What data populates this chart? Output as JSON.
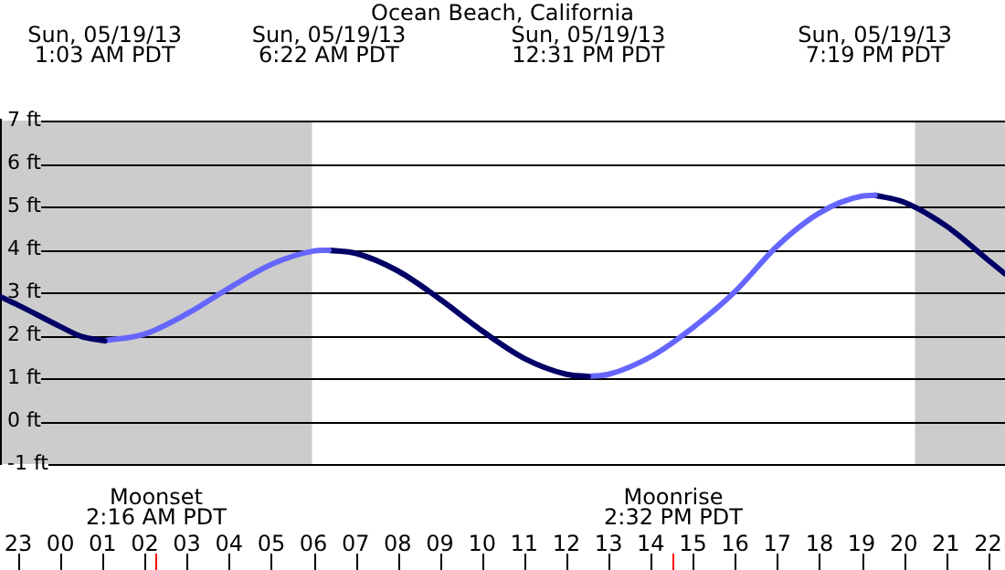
{
  "chart_data": {
    "type": "line",
    "title": "Ocean Beach, California",
    "xlim": [
      "--05-18T22:34",
      "--05-19T22:24"
    ],
    "xticks": [
      {
        "value": "--05-18T23:00",
        "label": "23"
      },
      {
        "value": "--05-19T00:00",
        "label": "00"
      },
      {
        "value": "--05-19T01:00",
        "label": "01"
      },
      {
        "value": "--05-19T02:00",
        "label": "02"
      },
      {
        "value": "--05-19T03:00",
        "label": "03"
      },
      {
        "value": "--05-19T04:00",
        "label": "04"
      },
      {
        "value": "--05-19T05:00",
        "label": "05"
      },
      {
        "value": "--05-19T06:00",
        "label": "06"
      },
      {
        "value": "--05-19T07:00",
        "label": "07"
      },
      {
        "value": "--05-19T08:00",
        "label": "08"
      },
      {
        "value": "--05-19T09:00",
        "label": "09"
      },
      {
        "value": "--05-19T10:00",
        "label": "10"
      },
      {
        "value": "--05-19T11:00",
        "label": "11"
      },
      {
        "value": "--05-19T12:00",
        "label": "12"
      },
      {
        "value": "--05-19T13:00",
        "label": "13"
      },
      {
        "value": "--05-19T14:00",
        "label": "14"
      },
      {
        "value": "--05-19T15:00",
        "label": "15"
      },
      {
        "value": "--05-19T16:00",
        "label": "16"
      },
      {
        "value": "--05-19T17:00",
        "label": "17"
      },
      {
        "value": "--05-19T18:00",
        "label": "18"
      },
      {
        "value": "--05-19T19:00",
        "label": "19"
      },
      {
        "value": "--05-19T20:00",
        "label": "20"
      },
      {
        "value": "--05-19T21:00",
        "label": "21"
      },
      {
        "value": "--05-19T22:00",
        "label": "22"
      }
    ],
    "ylim": [
      -1,
      7
    ],
    "yticks": [
      {
        "value": -1,
        "label": "-1 ft"
      },
      {
        "value": 0,
        "label": "0 ft"
      },
      {
        "value": 1,
        "label": "1 ft"
      },
      {
        "value": 2,
        "label": "2 ft"
      },
      {
        "value": 3,
        "label": "3 ft"
      },
      {
        "value": 4,
        "label": "4 ft"
      },
      {
        "value": 5,
        "label": "5 ft"
      },
      {
        "value": 6,
        "label": "6 ft"
      },
      {
        "value": 7,
        "label": "7 ft"
      }
    ],
    "series": [
      {
        "color": "#000066",
        "x": [
          "--05-18T22:34",
          "--05-18T23:00",
          "--05-19T00:00",
          "--05-19T00:30",
          "--05-19T01:03"
        ],
        "values": [
          2.9,
          2.7,
          2.2,
          1.97,
          1.87
        ]
      },
      {
        "color": "#6666ff",
        "x": [
          "--05-19T01:03",
          "--05-19T02:00",
          "--05-19T03:00",
          "--05-19T04:00",
          "--05-19T05:00",
          "--05-19T06:00",
          "--05-19T06:22"
        ],
        "values": [
          1.87,
          2.03,
          2.5,
          3.1,
          3.65,
          3.96,
          3.98
        ]
      },
      {
        "color": "#000066",
        "x": [
          "--05-19T06:22",
          "--05-19T07:00",
          "--05-19T08:00",
          "--05-19T09:00",
          "--05-19T10:00",
          "--05-19T11:00",
          "--05-19T12:00",
          "--05-19T12:31"
        ],
        "values": [
          3.98,
          3.91,
          3.5,
          2.84,
          2.1,
          1.46,
          1.09,
          1.04
        ]
      },
      {
        "color": "#6666ff",
        "x": [
          "--05-19T12:31",
          "--05-19T13:00",
          "--05-19T14:00",
          "--05-19T15:00",
          "--05-19T16:00",
          "--05-19T17:00",
          "--05-19T18:00",
          "--05-19T19:00",
          "--05-19T19:19"
        ],
        "values": [
          1.04,
          1.09,
          1.5,
          2.18,
          3.02,
          4.08,
          4.85,
          5.24,
          5.26
        ]
      },
      {
        "color": "#000066",
        "x": [
          "--05-19T19:19",
          "--05-19T20:00",
          "--05-19T21:00",
          "--05-19T22:00",
          "--05-19T22:24"
        ],
        "values": [
          5.26,
          5.1,
          4.55,
          3.75,
          3.43
        ]
      }
    ],
    "bands": [
      {
        "axis": "x",
        "from": "--05-18T22:34",
        "to": "--05-19T05:58",
        "label": null,
        "color": "#cccccc"
      },
      {
        "axis": "x",
        "from": "--05-19T20:16",
        "to": "--05-19T22:24",
        "label": null,
        "color": "#cccccc"
      }
    ],
    "ref_lines": [
      {
        "axis": "x",
        "value": "--05-19T02:16",
        "label": "Moonset\n2:16 AM PDT",
        "color": "#ff0000"
      },
      {
        "axis": "x",
        "value": "--05-19T14:32",
        "label": "Moonrise\n2:32 PM PDT",
        "color": "#ff0000"
      }
    ],
    "annotations": [
      "Sun, 05/19/13\n1:03 AM PDT",
      "Sun, 05/19/13\n6:22 AM PDT",
      "Sun, 05/19/13\n12:31 PM PDT",
      "Sun, 05/19/13\n7:19 PM PDT"
    ],
    "grid": "y",
    "legend": false,
    "marker": "none",
    "line_style": "solid"
  }
}
